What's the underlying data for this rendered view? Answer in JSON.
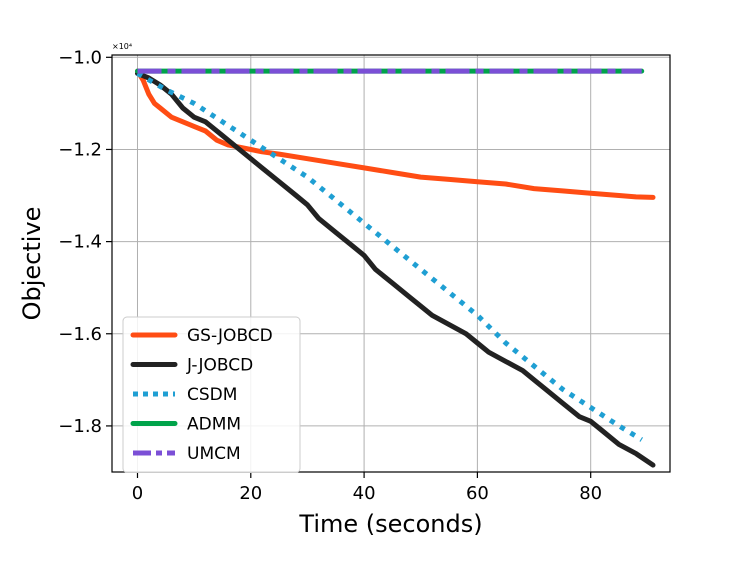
{
  "chart_data": {
    "type": "line",
    "title": "",
    "xlabel": "Time (seconds)",
    "ylabel": "Objective",
    "y_offset_label": "×10⁴",
    "xlim": [
      -4.5,
      94
    ],
    "ylim": [
      -1.9,
      -0.995
    ],
    "xticks": [
      0,
      20,
      40,
      60,
      80
    ],
    "xtick_labels": [
      "0",
      "20",
      "40",
      "60",
      "80"
    ],
    "yticks": [
      -1.0,
      -1.2,
      -1.4,
      -1.6,
      -1.8
    ],
    "ytick_labels": [
      "−1.0",
      "−1.2",
      "−1.4",
      "−1.6",
      "−1.8"
    ],
    "grid": true,
    "legend_position": "lower-left",
    "series": [
      {
        "name": "GS-JOBCD",
        "color": "#ff4d14",
        "dash": "solid",
        "x": [
          0,
          1,
          2,
          3,
          4,
          5,
          6,
          8,
          10,
          12,
          14,
          16,
          18,
          20,
          22,
          25,
          30,
          35,
          40,
          45,
          50,
          55,
          60,
          65,
          70,
          75,
          80,
          85,
          88,
          91
        ],
        "y": [
          -1.03,
          -1.05,
          -1.08,
          -1.1,
          -1.11,
          -1.12,
          -1.13,
          -1.14,
          -1.15,
          -1.16,
          -1.18,
          -1.19,
          -1.195,
          -1.2,
          -1.205,
          -1.21,
          -1.22,
          -1.23,
          -1.24,
          -1.25,
          -1.26,
          -1.265,
          -1.27,
          -1.275,
          -1.285,
          -1.29,
          -1.295,
          -1.3,
          -1.303,
          -1.304
        ]
      },
      {
        "name": "J-JOBCD",
        "color": "#222222",
        "dash": "solid",
        "x": [
          0,
          2,
          4,
          6,
          8,
          10,
          12,
          15,
          18,
          20,
          22,
          25,
          28,
          30,
          32,
          35,
          38,
          40,
          42,
          45,
          48,
          50,
          52,
          55,
          58,
          60,
          62,
          65,
          68,
          70,
          72,
          75,
          78,
          80,
          82,
          85,
          88,
          91
        ],
        "y": [
          -1.035,
          -1.045,
          -1.06,
          -1.08,
          -1.11,
          -1.13,
          -1.14,
          -1.17,
          -1.2,
          -1.22,
          -1.24,
          -1.27,
          -1.3,
          -1.32,
          -1.35,
          -1.38,
          -1.41,
          -1.43,
          -1.46,
          -1.49,
          -1.52,
          -1.54,
          -1.56,
          -1.58,
          -1.6,
          -1.62,
          -1.64,
          -1.66,
          -1.68,
          -1.7,
          -1.72,
          -1.75,
          -1.78,
          -1.79,
          -1.81,
          -1.84,
          -1.86,
          -1.885
        ]
      },
      {
        "name": "CSDM",
        "color": "#1f9fd3",
        "dash": "dotted",
        "x": [
          0,
          5,
          10,
          15,
          20,
          25,
          30,
          35,
          40,
          45,
          50,
          55,
          60,
          65,
          70,
          75,
          80,
          85,
          89
        ],
        "y": [
          -1.035,
          -1.07,
          -1.1,
          -1.14,
          -1.18,
          -1.22,
          -1.26,
          -1.31,
          -1.36,
          -1.41,
          -1.46,
          -1.51,
          -1.56,
          -1.62,
          -1.67,
          -1.72,
          -1.76,
          -1.8,
          -1.83
        ]
      },
      {
        "name": "ADMM",
        "color": "#00a34a",
        "dash": "solid",
        "x": [
          0,
          89
        ],
        "y": [
          -1.03,
          -1.03
        ]
      },
      {
        "name": "UMCM",
        "color": "#7b4fd6",
        "dash": "dashdot",
        "x": [
          0,
          89
        ],
        "y": [
          -1.03,
          -1.03
        ]
      }
    ]
  }
}
